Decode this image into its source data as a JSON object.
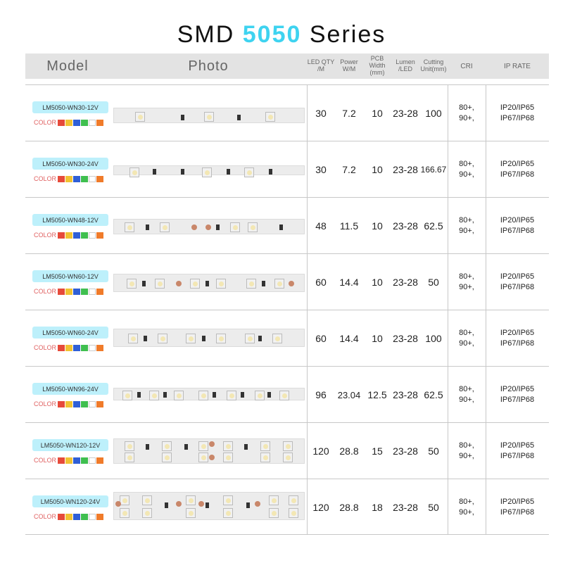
{
  "title": {
    "prefix": "SMD",
    "accent": "5050",
    "suffix": "Series"
  },
  "header": {
    "model": "Model",
    "photo": "Photo",
    "qty_line1": "LED  QTY",
    "qty_line2": "/M",
    "power_line1": "Power",
    "power_line2": "W/M",
    "pcb_line1": "PCB Width",
    "pcb_line2": "(mm)",
    "lumen_line1": "Lumen",
    "lumen_line2": "/LED",
    "cutting_line1": "Cutting",
    "cutting_line2": "Unit(mm)",
    "cri": "CRI",
    "ip": "IP RATE"
  },
  "color_label": "COLOR",
  "swatches": [
    "#e64a3a",
    "#f1c232",
    "#2f5fd6",
    "#3fbf4f",
    "#ffffff",
    "#f07b2a"
  ],
  "rows": [
    {
      "model": "LM5050-WN30-12V",
      "qty": "30",
      "power": "7.2",
      "pcb": "10",
      "lumen": "23-28",
      "cut": "100",
      "cri1": "80+,",
      "cri2": "90+,",
      "ip1": "IP20/IP65",
      "ip2": "IP67/IP68"
    },
    {
      "model": "LM5050-WN30-24V",
      "qty": "30",
      "power": "7.2",
      "pcb": "10",
      "lumen": "23-28",
      "cut": "166.67",
      "cri1": "80+,",
      "cri2": "90+,",
      "ip1": "IP20/IP65",
      "ip2": "IP67/IP68"
    },
    {
      "model": "LM5050-WN48-12V",
      "qty": "48",
      "power": "11.5",
      "pcb": "10",
      "lumen": "23-28",
      "cut": "62.5",
      "cri1": "80+,",
      "cri2": "90+,",
      "ip1": "IP20/IP65",
      "ip2": "IP67/IP68"
    },
    {
      "model": "LM5050-WN60-12V",
      "qty": "60",
      "power": "14.4",
      "pcb": "10",
      "lumen": "23-28",
      "cut": "50",
      "cri1": "80+,",
      "cri2": "90+,",
      "ip1": "IP20/IP65",
      "ip2": "IP67/IP68"
    },
    {
      "model": "LM5050-WN60-24V",
      "qty": "60",
      "power": "14.4",
      "pcb": "10",
      "lumen": "23-28",
      "cut": "100",
      "cri1": "80+,",
      "cri2": "90+,",
      "ip1": "IP20/IP65",
      "ip2": "IP67/IP68"
    },
    {
      "model": "LM5050-WN96-24V",
      "qty": "96",
      "power": "23.04",
      "pcb": "12.5",
      "lumen": "23-28",
      "cut": "62.5",
      "cri1": "80+,",
      "cri2": "90+,",
      "ip1": "IP20/IP65",
      "ip2": "IP67/IP68"
    },
    {
      "model": "LM5050-WN120-12V",
      "qty": "120",
      "power": "28.8",
      "pcb": "15",
      "lumen": "23-28",
      "cut": "50",
      "cri1": "80+,",
      "cri2": "90+,",
      "ip1": "IP20/IP65",
      "ip2": "IP67/IP68"
    },
    {
      "model": "LM5050-WN120-24V",
      "qty": "120",
      "power": "28.8",
      "pcb": "18",
      "lumen": "23-28",
      "cut": "50",
      "cri1": "80+,",
      "cri2": "90+,",
      "ip1": "IP20/IP65",
      "ip2": "IP67/IP68"
    }
  ]
}
